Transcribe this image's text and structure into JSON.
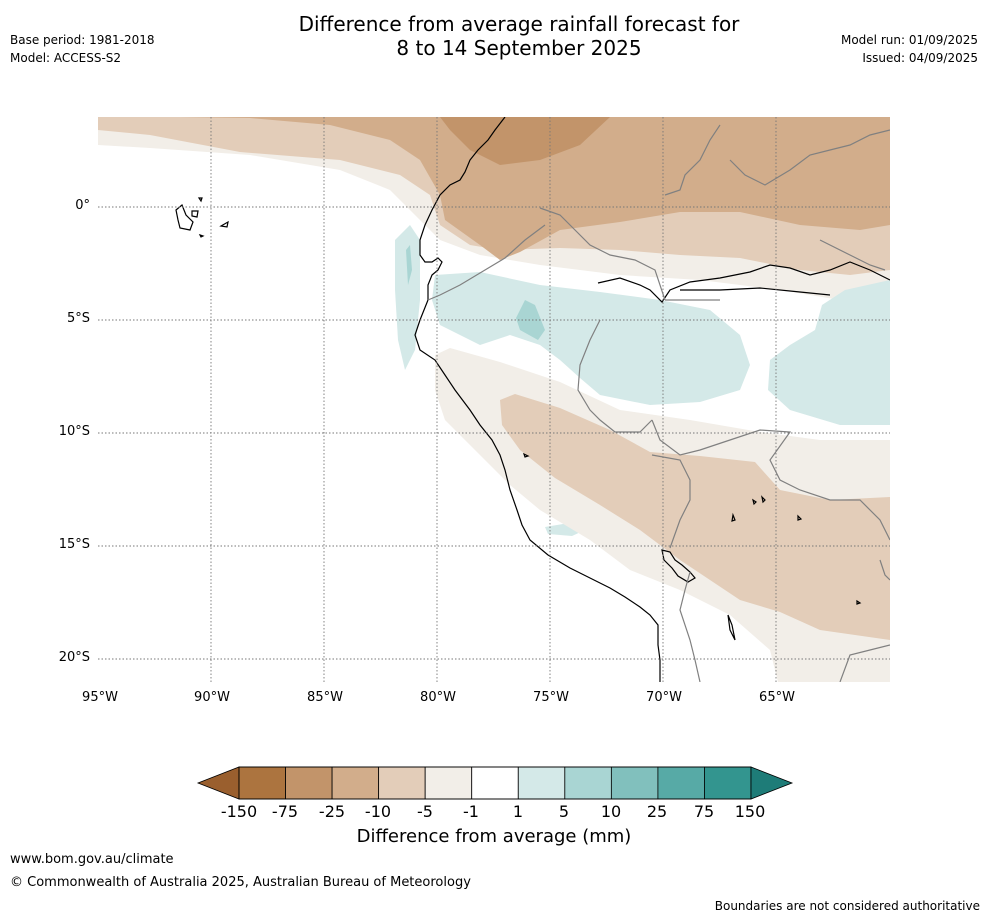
{
  "title": {
    "line1": "Difference from average rainfall forecast for",
    "line2": "8 to 14 September 2025"
  },
  "info_left": {
    "base_period": "Base period: 1981-2018",
    "model": "Model: ACCESS-S2"
  },
  "info_right": {
    "model_run": "Model run: 01/09/2025",
    "issued": "Issued: 04/09/2025"
  },
  "map": {
    "lat_labels": [
      "0°",
      "5°S",
      "10°S",
      "15°S",
      "20°S"
    ],
    "lon_labels": [
      "95°W",
      "90°W",
      "85°W",
      "80°W",
      "75°W",
      "70°W",
      "65°W"
    ],
    "extent": {
      "lon": [
        -95,
        -60
      ],
      "lat": [
        -21,
        4
      ]
    }
  },
  "colorbar": {
    "labels": [
      "-150",
      "-75",
      "-25",
      "-10",
      "-5",
      "-1",
      "1",
      "5",
      "10",
      "25",
      "75",
      "150"
    ],
    "colors": [
      "#9a5f2e",
      "#ac743f",
      "#c2946a",
      "#d2ad8b",
      "#e3cdb9",
      "#f2eee8",
      "#ffffff",
      "#d4e9e8",
      "#a9d5d3",
      "#81c0bd",
      "#57aaa6",
      "#33958f",
      "#1e7c78"
    ],
    "title": "Difference from average (mm)"
  },
  "footer": {
    "url": "www.bom.gov.au/climate",
    "copyright": "© Commonwealth of Australia 2025, Australian Bureau of Meteorology",
    "disclaimer": "Boundaries are not considered authoritative"
  }
}
